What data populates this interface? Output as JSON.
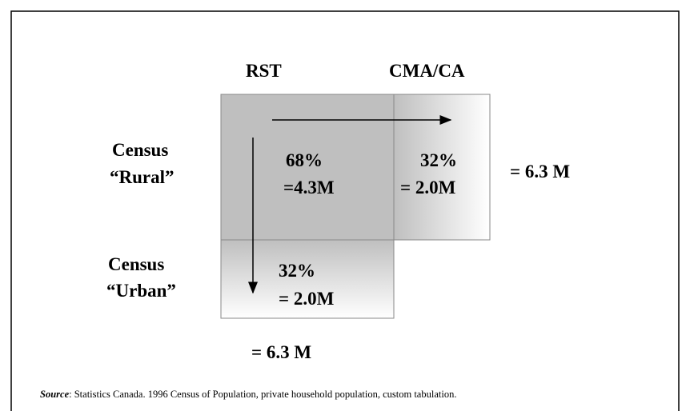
{
  "column_headers": [
    "RST",
    "CMA/CA"
  ],
  "row_headers": [
    [
      "Census",
      "“Rural”"
    ],
    [
      "Census",
      "“Urban”"
    ]
  ],
  "cells": {
    "rural_rst": [
      "68%",
      "=4.3M"
    ],
    "rural_cma": [
      "32%",
      "= 2.0M"
    ],
    "urban_rst": [
      "32%",
      "= 2.0M"
    ]
  },
  "totals": {
    "row": "= 6.3 M",
    "column": "= 6.3 M"
  },
  "source": {
    "label": "Source",
    "text": ":  Statistics Canada. 1996 Census of Population, private household population, custom tabulation."
  }
}
